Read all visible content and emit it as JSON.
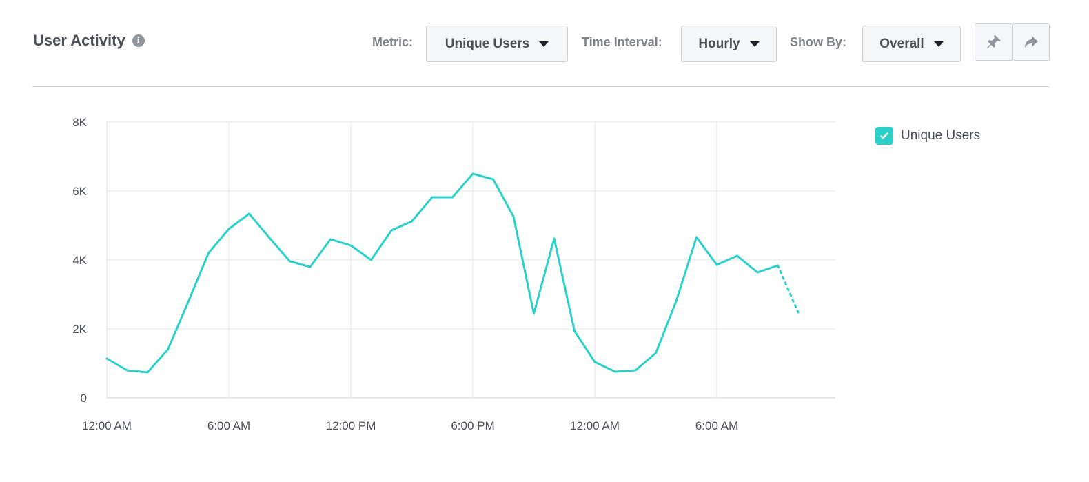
{
  "header": {
    "title": "User Activity",
    "info_icon": "info-icon",
    "metric": {
      "label": "Metric:",
      "value": "Unique Users"
    },
    "interval": {
      "label": "Time Interval:",
      "value": "Hourly"
    },
    "show_by": {
      "label": "Show By:",
      "value": "Overall"
    },
    "pin_icon": "pin-icon",
    "share_icon": "share-icon"
  },
  "legend": {
    "label": "Unique Users",
    "checked": true,
    "color": "#2dcfcb"
  },
  "chart_data": {
    "type": "line",
    "x_tick_labels": [
      "12:00 AM",
      "6:00 AM",
      "12:00 PM",
      "6:00 PM",
      "12:00 AM",
      "6:00 AM"
    ],
    "x_interval": "hourly",
    "y_tick_labels": [
      "0",
      "2K",
      "4K",
      "6K",
      "8K"
    ],
    "ylim": [
      0,
      8000
    ],
    "grid": true,
    "legend_placement": "right",
    "series": [
      {
        "name": "Unique Users",
        "color": "#2dcfcb",
        "values": [
          1140,
          800,
          740,
          1400,
          2780,
          4200,
          4900,
          5340,
          4640,
          3960,
          3800,
          4600,
          4420,
          4000,
          4860,
          5120,
          5820,
          5820,
          6500,
          6340,
          5260,
          2440,
          4620,
          1940,
          1040,
          760,
          800,
          1300,
          2800,
          4660,
          3860,
          4120,
          3640,
          3840,
          2480
        ],
        "last_segment_dotted": true
      }
    ]
  }
}
